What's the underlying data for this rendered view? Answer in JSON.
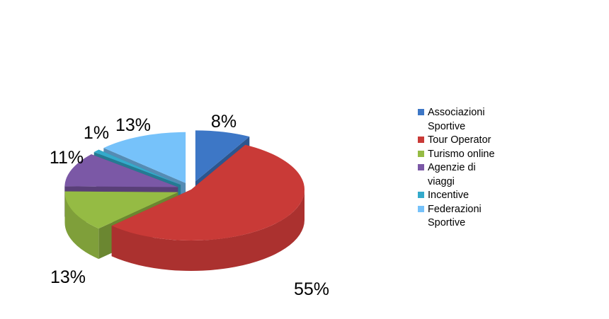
{
  "chart_data": {
    "type": "pie",
    "title": "",
    "legend_position": "right",
    "slices": [
      {
        "label": "Associazioni Sportive",
        "value": 8,
        "display": "8%",
        "color": "#3D77C6"
      },
      {
        "label": "Tour Operator",
        "value": 55,
        "display": "55%",
        "color": "#C93A37"
      },
      {
        "label": "Turismo online",
        "value": 13,
        "display": "13%",
        "color": "#95BB44"
      },
      {
        "label": "Agenzie di viaggi",
        "value": 11,
        "display": "11%",
        "color": "#7B58A6"
      },
      {
        "label": "Incentive",
        "value": 1,
        "display": "1%",
        "color": "#34AACB"
      },
      {
        "label": "Federazioni Sportive",
        "value": 13,
        "display": "13%",
        "color": "#76C2FA"
      }
    ]
  }
}
